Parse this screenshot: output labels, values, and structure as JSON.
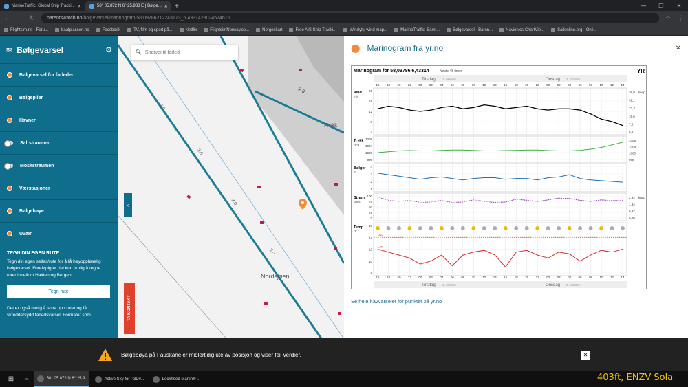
{
  "browser": {
    "tabs": [
      {
        "label": "MarineTraffic: Global Ship Tracki..."
      },
      {
        "label": "58° 05.872 N 6° 25.988 E | Bølge..."
      }
    ],
    "url_host": "barentswatch.no",
    "url_path": "/bolgevarsel/marinogram/58.09786212243173_6.4331428024574615",
    "bookmarks": [
      "Flightsim.no - Foru...",
      "baatplassen.no",
      "Facebook",
      "TV, film og sport på...",
      "Netflix",
      "FlightsimNorway.co...",
      "Norgeskart",
      "Free AIS Ship Tracki...",
      "Windyty, wind map...",
      "MarineTraffic: Samt...",
      "Bølgevarsel - Baren...",
      "Navionics ChartVie...",
      "Sailonline.org - Onli..."
    ]
  },
  "sidebar": {
    "title": "Bølgevarsel",
    "items": [
      {
        "label": "Bølgevarsel for farleder",
        "type": "dot"
      },
      {
        "label": "Bølgepiler",
        "type": "dot"
      },
      {
        "label": "Havner",
        "type": "dot"
      },
      {
        "label": "Saltstraumen",
        "type": "toggle"
      },
      {
        "label": "Moskstraumen",
        "type": "toggle"
      },
      {
        "label": "Værstasjoner",
        "type": "dot"
      },
      {
        "label": "Bølgebøye",
        "type": "dot"
      },
      {
        "label": "Uvær",
        "type": "dot"
      }
    ],
    "route": {
      "heading": "TEGN DIN EGEN RUTE",
      "text": "Tegn din egen seilas/rute for å få høyoppløselig bølgevarsel. Foreløpig er det kun mulig å tegne ruter i mellom Halden og Bergen.",
      "button": "Tegn rute",
      "text2": "Det er også mulig å laste opp ruter og få skreddersydd farledsvarsel. Formater som"
    }
  },
  "map": {
    "search_placeholder": "Snarvei til farled",
    "contact_label": "TA KONTAKT",
    "labels": {
      "sea": "Nordsjøen",
      "place": "Flekk",
      "c1": "3.0",
      "c2": "2.0"
    }
  },
  "panel": {
    "title": "Marinogram fra yr.no",
    "link": "Se hele havvarselet for punktet på yr.no"
  },
  "chart_data": {
    "type": "line",
    "title": "Marinogram for 58,09786 6,43314",
    "subtitle": "Neste 48 timer",
    "brand": "YR",
    "days_top": [
      "Tirsdag",
      "Onsdag"
    ],
    "days_top_dates": [
      "1. oktober",
      "2. oktober"
    ],
    "hours": [
      "16",
      "18",
      "20",
      "22",
      "00",
      "02",
      "04",
      "06",
      "08",
      "10",
      "12",
      "14",
      "16",
      "18",
      "20",
      "22",
      "00",
      "02",
      "04",
      "06",
      "08",
      "10",
      "12",
      "14"
    ],
    "panels": [
      {
        "name": "Vind",
        "unit": "m/s",
        "yticks": [
          4,
          8,
          12,
          16,
          20
        ],
        "right_unit": "knop",
        "right_ticks": [
          "38,9",
          "31,1",
          "23,3",
          "15,6",
          "7,8",
          "0,0"
        ],
        "color": "#000000",
        "values": [
          13,
          14,
          13.5,
          12.5,
          12,
          12.5,
          13.5,
          14,
          13,
          13.5,
          14.5,
          14,
          13,
          13.5,
          14,
          13,
          12.5,
          13,
          13,
          12.5,
          11,
          9,
          8,
          6.5
        ]
      },
      {
        "name": "Trykk",
        "unit": "hPa",
        "yticks": [
          996,
          1000,
          1004,
          1008
        ],
        "right_ticks": [
          "1008",
          "1004",
          "1000",
          "996"
        ],
        "color": "#3cb043",
        "values": [
          1000,
          1000.5,
          1001,
          1001.2,
          1001,
          1001,
          1001.3,
          1001.5,
          1001.5,
          1001.3,
          1001,
          1001,
          1001.2,
          1001.3,
          1001.5,
          1001.5,
          1001.2,
          1001,
          1001,
          1001.3,
          1002,
          1003,
          1004.5,
          1006
        ]
      },
      {
        "name": "Bølger",
        "unit": "m",
        "yticks": [
          1,
          2,
          3,
          4
        ],
        "color": "#1f6fb0",
        "values": [
          3.1,
          2.9,
          2.7,
          2.5,
          2.3,
          2.5,
          2.6,
          2.4,
          2.2,
          2.4,
          2.5,
          2.5,
          2.3,
          2.4,
          2.4,
          2.2,
          2.5,
          2.6,
          2.9,
          2.4,
          2.2,
          2.1,
          2.0,
          1.9
        ]
      },
      {
        "name": "Strøm",
        "unit": "cm/s",
        "yticks": [
          0,
          25,
          50,
          75,
          100
        ],
        "right_unit": "knop",
        "right_ticks": [
          "2,92",
          "1,94",
          "0,97",
          "0,00"
        ],
        "color": "#9b3bb5",
        "values": [
          95,
          80,
          75,
          80,
          70,
          72,
          80,
          70,
          72,
          82,
          75,
          70,
          72,
          85,
          80,
          75,
          82,
          90,
          88,
          80,
          75,
          82,
          78,
          80
        ]
      },
      {
        "name": "Temp",
        "unit": "°C",
        "yticks": [
          8,
          10,
          12,
          14,
          16
        ],
        "color": "#d42a2a",
        "values": [
          12,
          11.5,
          11,
          10.5,
          9.5,
          10,
          11,
          9.2,
          11,
          11.5,
          11.8,
          11,
          9,
          11.5,
          11.8,
          11,
          10.5,
          11.5,
          11.2,
          10,
          11,
          11.8,
          11.5,
          12
        ]
      }
    ],
    "sea_temp_label": "Hav",
    "air_temp_label": "Luft",
    "sea_temp": 14
  },
  "alert": {
    "text": "Bølgebøya på Fauskane er midlertidig ute av posisjon og viser feil verdier."
  },
  "taskbar": {
    "apps": [
      "58° 05.872 N 6° 25.9...",
      "Active Sky for P3Dv...",
      "Lockheed Martin® ..."
    ],
    "overlay": "403ft, ENZV Sola"
  }
}
